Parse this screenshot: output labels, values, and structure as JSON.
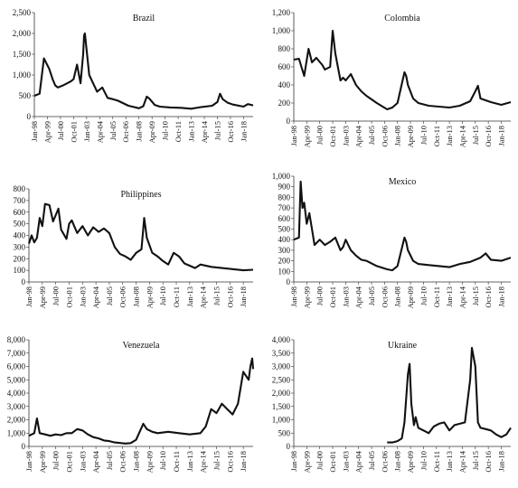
{
  "x_tick_labels": [
    "Jan-98",
    "Apr-99",
    "Jul-00",
    "Oct-01",
    "Jan-03",
    "Apr-04",
    "Jul-05",
    "Oct-06",
    "Jan-08",
    "Apr-09",
    "Jul-10",
    "Oct-11",
    "Jan-13",
    "Apr-14",
    "Jul-15",
    "Oct-16",
    "Jan-18"
  ],
  "chart_data": [
    {
      "type": "line",
      "title": "Brazil",
      "ylim": [
        0,
        2500
      ],
      "yticks": [
        0,
        500,
        1000,
        1500,
        2000,
        2500
      ],
      "ytick_labels": [
        "0",
        "500",
        "1,000",
        "1,500",
        "2,000",
        "2,500"
      ],
      "x": [
        "Jan-98",
        "Jul-98",
        "Dec-98",
        "Jun-99",
        "Oct-99",
        "Jan-00",
        "Apr-00",
        "Oct-00",
        "Jul-01",
        "Oct-01",
        "Feb-02",
        "Jun-02",
        "Sep-02",
        "Oct-02",
        "Nov-02",
        "Apr-03",
        "Jan-04",
        "Jul-04",
        "Jan-05",
        "Jul-05",
        "Jan-06",
        "Jan-07",
        "Jul-07",
        "Jan-08",
        "Jun-08",
        "Oct-08",
        "Jan-09",
        "Jul-09",
        "Jan-10",
        "Jan-11",
        "Jan-12",
        "Jan-13",
        "Jan-14",
        "Jan-15",
        "Jul-15",
        "Oct-15",
        "Jan-16",
        "Jul-16",
        "Jan-17",
        "Jan-18",
        "Jun-18",
        "Dec-18"
      ],
      "values": [
        500,
        550,
        1400,
        1150,
        900,
        750,
        700,
        750,
        850,
        900,
        1250,
        800,
        1500,
        1950,
        2000,
        1000,
        600,
        700,
        450,
        420,
        380,
        260,
        230,
        200,
        250,
        480,
        430,
        280,
        240,
        220,
        210,
        190,
        230,
        260,
        350,
        550,
        420,
        330,
        290,
        240,
        300,
        270
      ]
    },
    {
      "type": "line",
      "title": "Colombia",
      "ylim": [
        0,
        1200
      ],
      "yticks": [
        0,
        200,
        400,
        600,
        800,
        1000,
        1200
      ],
      "ytick_labels": [
        "0",
        "200",
        "400",
        "600",
        "800",
        "1,000",
        "1,200"
      ],
      "x": [
        "Jan-98",
        "Jul-98",
        "Jan-99",
        "Jun-99",
        "Oct-99",
        "Mar-00",
        "Oct-00",
        "Jan-01",
        "Jul-01",
        "Oct-01",
        "Jan-02",
        "Jul-02",
        "Oct-02",
        "Jan-03",
        "Jul-03",
        "Jan-04",
        "Jul-04",
        "Jan-05",
        "Jan-06",
        "Jan-07",
        "Jul-07",
        "Jan-08",
        "Sep-08",
        "Nov-08",
        "Jan-09",
        "Jul-09",
        "Jan-10",
        "Jan-11",
        "Jan-12",
        "Jan-13",
        "Jan-14",
        "Jan-15",
        "Jul-15",
        "Oct-15",
        "Jan-16",
        "Jan-17",
        "Jan-18",
        "Dec-18"
      ],
      "values": [
        680,
        690,
        500,
        800,
        650,
        700,
        620,
        570,
        600,
        1000,
        750,
        450,
        480,
        450,
        520,
        400,
        330,
        280,
        200,
        130,
        150,
        200,
        540,
        500,
        400,
        250,
        200,
        170,
        160,
        150,
        170,
        220,
        330,
        390,
        250,
        210,
        180,
        210
      ]
    },
    {
      "type": "line",
      "title": "Philippines",
      "ylim": [
        0,
        800
      ],
      "yticks": [
        0,
        100,
        200,
        300,
        400,
        500,
        600,
        700,
        800
      ],
      "ytick_labels": [
        "0",
        "100",
        "200",
        "300",
        "400",
        "500",
        "600",
        "700",
        "800"
      ],
      "x": [
        "Jan-98",
        "Apr-98",
        "Jul-98",
        "Oct-98",
        "Jan-99",
        "Apr-99",
        "Jul-99",
        "Dec-99",
        "Apr-00",
        "Oct-00",
        "Jan-01",
        "Jul-01",
        "Oct-01",
        "Jan-02",
        "Jul-02",
        "Jan-03",
        "Jul-03",
        "Jan-04",
        "Jul-04",
        "Jan-05",
        "Jul-05",
        "Jan-06",
        "Jul-06",
        "Jan-07",
        "Jul-07",
        "Jan-08",
        "Jul-08",
        "Oct-08",
        "Jan-09",
        "Jul-09",
        "Jan-10",
        "Jul-10",
        "Jan-11",
        "Jul-11",
        "Jan-12",
        "Jul-12",
        "Jan-13",
        "Jul-13",
        "Jan-14",
        "Jan-15",
        "Jan-16",
        "Jan-17",
        "Jan-18",
        "Dec-18"
      ],
      "values": [
        330,
        400,
        340,
        380,
        550,
        480,
        670,
        660,
        520,
        630,
        450,
        370,
        500,
        530,
        420,
        480,
        400,
        470,
        430,
        460,
        420,
        300,
        240,
        220,
        190,
        250,
        280,
        550,
        380,
        250,
        220,
        180,
        150,
        250,
        220,
        160,
        140,
        120,
        150,
        130,
        120,
        110,
        100,
        105
      ]
    },
    {
      "type": "line",
      "title": "Mexico",
      "ylim": [
        0,
        1000
      ],
      "yticks": [
        0,
        100,
        200,
        300,
        400,
        500,
        600,
        700,
        800,
        900,
        1000
      ],
      "ytick_labels": [
        "0",
        "100",
        "200",
        "300",
        "400",
        "500",
        "600",
        "700",
        "800",
        "900",
        "1,000"
      ],
      "x": [
        "Jan-98",
        "Jul-98",
        "Sep-98",
        "Nov-98",
        "Jan-99",
        "Apr-99",
        "Jul-99",
        "Oct-99",
        "Jan-00",
        "Jul-00",
        "Jan-01",
        "Jul-01",
        "Jan-02",
        "Jul-02",
        "Oct-02",
        "Jan-03",
        "Jul-03",
        "Jan-04",
        "Jul-04",
        "Jan-05",
        "Jan-06",
        "Jan-07",
        "Jul-07",
        "Jan-08",
        "Sep-08",
        "Nov-08",
        "Jan-09",
        "Jul-09",
        "Jan-10",
        "Jan-11",
        "Jan-12",
        "Jan-13",
        "Jan-14",
        "Jan-15",
        "Jan-16",
        "Jul-16",
        "Jan-17",
        "Jan-18",
        "Dec-18"
      ],
      "values": [
        400,
        420,
        950,
        700,
        750,
        550,
        650,
        500,
        350,
        400,
        350,
        380,
        420,
        300,
        330,
        400,
        300,
        250,
        210,
        200,
        150,
        120,
        110,
        150,
        420,
        380,
        300,
        200,
        170,
        160,
        150,
        140,
        170,
        190,
        230,
        270,
        210,
        200,
        230
      ]
    },
    {
      "type": "line",
      "title": "Venezuela",
      "ylim": [
        0,
        8000
      ],
      "yticks": [
        0,
        1000,
        2000,
        3000,
        4000,
        5000,
        6000,
        7000,
        8000
      ],
      "ytick_labels": [
        "0",
        "1,000",
        "2,000",
        "3,000",
        "4,000",
        "5,000",
        "6,000",
        "7,000",
        "8,000"
      ],
      "x": [
        "Jan-98",
        "Jul-98",
        "Oct-98",
        "Jan-99",
        "Jul-99",
        "Jan-00",
        "Jul-00",
        "Jan-01",
        "Jul-01",
        "Jan-02",
        "Jul-02",
        "Jan-03",
        "Jul-03",
        "Jan-04",
        "Jul-04",
        "Jan-05",
        "Jul-05",
        "Jan-06",
        "Jan-07",
        "Jul-07",
        "Jan-08",
        "Sep-08",
        "Jan-09",
        "Jul-09",
        "Jan-10",
        "Jan-11",
        "Jan-12",
        "Jan-13",
        "Jan-14",
        "Jul-14",
        "Jan-15",
        "Jul-15",
        "Jan-16",
        "Jul-16",
        "Jan-17",
        "Jul-17",
        "Jan-18",
        "Jul-18",
        "Sep-18",
        "Nov-18",
        "Dec-18"
      ],
      "values": [
        800,
        1000,
        2100,
        1000,
        900,
        800,
        900,
        850,
        1000,
        1000,
        1300,
        1200,
        900,
        700,
        600,
        450,
        400,
        300,
        220,
        250,
        500,
        1700,
        1300,
        1100,
        1000,
        1100,
        1000,
        900,
        1000,
        1500,
        2800,
        2500,
        3200,
        2800,
        2400,
        3200,
        5600,
        5000,
        6000,
        6600,
        5800
      ]
    },
    {
      "type": "line",
      "title": "Ukraine",
      "ylim": [
        0,
        4000
      ],
      "yticks": [
        0,
        500,
        1000,
        1500,
        2000,
        2500,
        3000,
        3500,
        4000
      ],
      "ytick_labels": [
        "0",
        "500",
        "1,000",
        "1,500",
        "2,000",
        "2,500",
        "3,000",
        "3,500",
        "4,000"
      ],
      "x": [
        "Jan-07",
        "Jul-07",
        "Jan-08",
        "Jun-08",
        "Sep-08",
        "Jan-09",
        "Mar-09",
        "May-09",
        "Aug-09",
        "Oct-09",
        "Jan-10",
        "Jul-10",
        "Jan-11",
        "Jul-11",
        "Jan-12",
        "Jul-12",
        "Jan-13",
        "Jul-13",
        "Jan-14",
        "Jul-14",
        "Jan-15",
        "Mar-15",
        "Jul-15",
        "Oct-15",
        "Jan-16",
        "Jul-16",
        "Jan-17",
        "Jul-17",
        "Jan-18",
        "Jul-18",
        "Dec-18"
      ],
      "values": [
        150,
        150,
        200,
        300,
        900,
        2700,
        3100,
        1600,
        800,
        1100,
        700,
        600,
        500,
        750,
        850,
        900,
        600,
        800,
        850,
        900,
        2500,
        3700,
        3000,
        900,
        700,
        650,
        600,
        450,
        350,
        450,
        700
      ]
    }
  ]
}
